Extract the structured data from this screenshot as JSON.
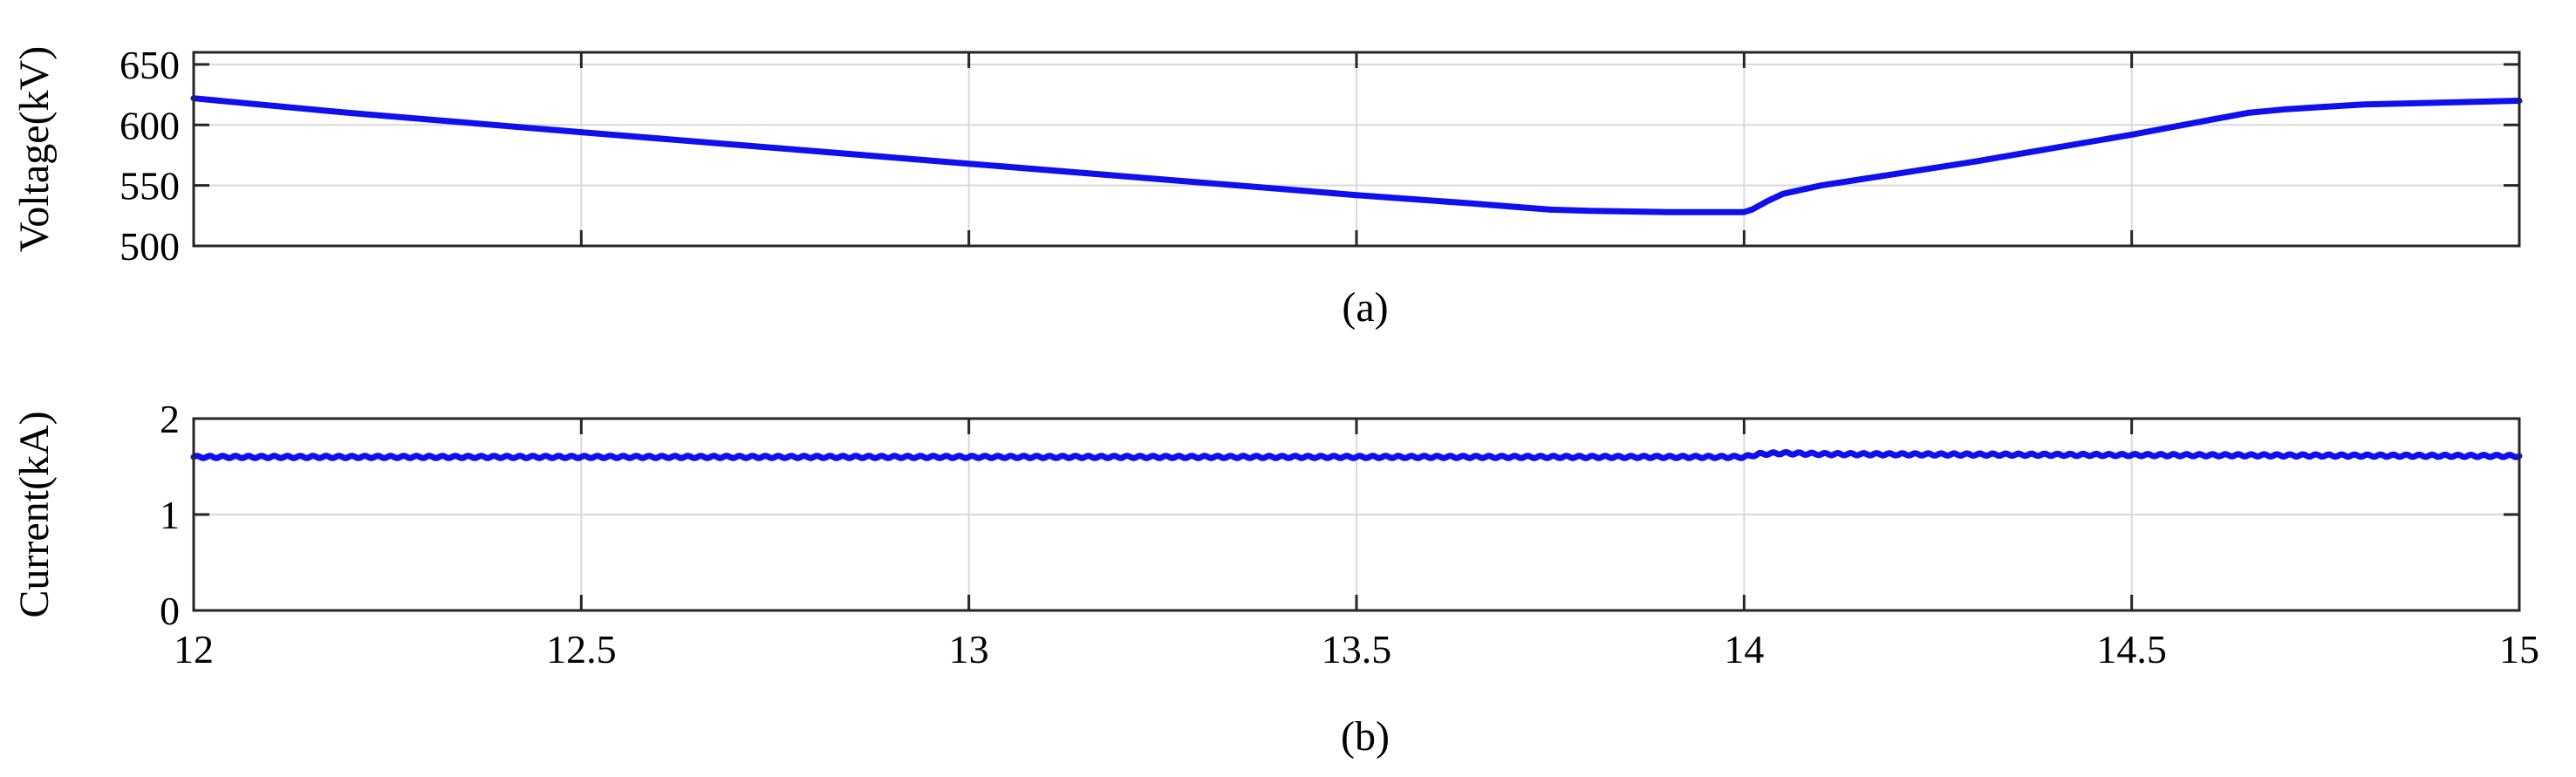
{
  "chart_data": [
    {
      "type": "line",
      "caption": "(a)",
      "xlabel": "",
      "ylabel": "Voltage(kV)",
      "xlim": [
        12,
        15
      ],
      "ylim": [
        500,
        660
      ],
      "xticks": [
        12,
        12.5,
        13,
        13.5,
        14,
        14.5,
        15
      ],
      "yticks": [
        500,
        550,
        600,
        650
      ],
      "grid": true,
      "series": [
        {
          "color": "#1010ee",
          "x": [
            12.0,
            12.2,
            12.5,
            12.75,
            13.0,
            13.25,
            13.5,
            13.65,
            13.75,
            13.8,
            13.9,
            14.0,
            14.01,
            14.03,
            14.05,
            14.1,
            14.2,
            14.3,
            14.5,
            14.6,
            14.65,
            14.7,
            14.8,
            15.0
          ],
          "y": [
            622,
            610,
            594,
            581,
            568,
            555,
            542,
            535,
            530,
            529,
            528,
            528,
            530,
            537,
            543,
            550,
            560,
            570,
            592,
            604,
            610,
            613,
            617,
            620
          ]
        }
      ]
    },
    {
      "type": "line",
      "caption": "(b)",
      "xlabel": "",
      "ylabel": "Current(kA)",
      "xlim": [
        12,
        15
      ],
      "ylim": [
        0,
        2
      ],
      "xticks": [
        12,
        12.5,
        13,
        13.5,
        14,
        14.5,
        15
      ],
      "yticks": [
        0,
        1,
        2
      ],
      "grid": true,
      "series": [
        {
          "color": "#1010ee",
          "x": [
            12.0,
            12.5,
            13.0,
            13.5,
            13.9,
            14.0,
            14.02,
            14.05,
            14.1,
            14.5,
            15.0
          ],
          "y": [
            1.6,
            1.6,
            1.6,
            1.6,
            1.6,
            1.6,
            1.63,
            1.64,
            1.63,
            1.62,
            1.61
          ],
          "ripple": 0.012
        }
      ]
    }
  ]
}
